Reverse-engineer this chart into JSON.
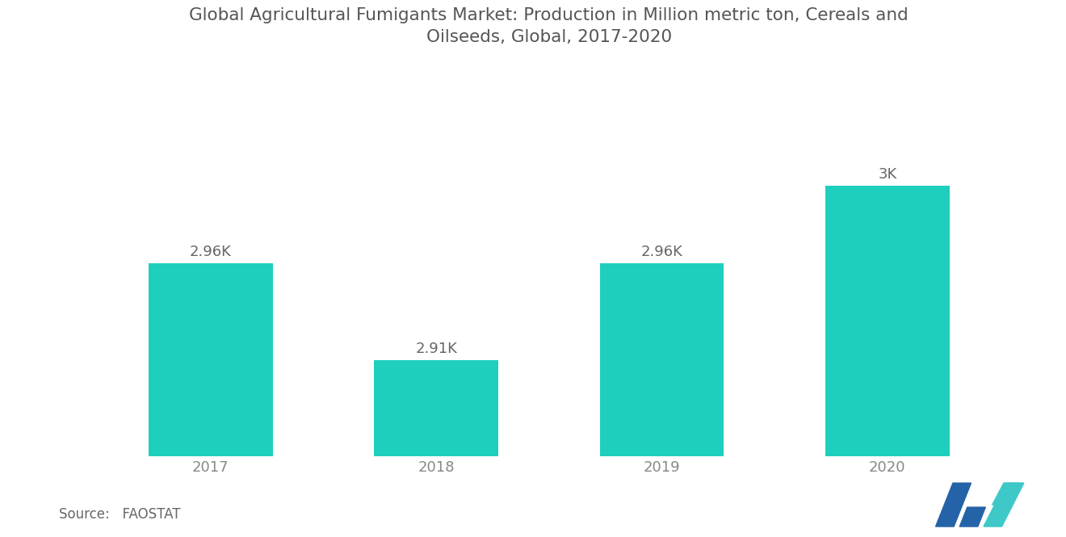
{
  "title": "Global Agricultural Fumigants Market: Production in Million metric ton, Cereals and\nOilseeds, Global, 2017-2020",
  "categories": [
    "2017",
    "2018",
    "2019",
    "2020"
  ],
  "values": [
    2960,
    2910,
    2960,
    3000
  ],
  "labels": [
    "2.96K",
    "2.91K",
    "2.96K",
    "3K"
  ],
  "bar_color": "#1ECFBE",
  "background_color": "#FFFFFF",
  "title_color": "#555555",
  "label_color": "#666666",
  "tick_color": "#888888",
  "source_text": "Source:   FAOSTAT",
  "ylim": [
    2860,
    3060
  ],
  "bar_width": 0.55,
  "title_fontsize": 15.5,
  "label_fontsize": 13,
  "tick_fontsize": 13,
  "source_fontsize": 12,
  "logo_blue": "#2563A8",
  "logo_teal": "#3EC8C8"
}
